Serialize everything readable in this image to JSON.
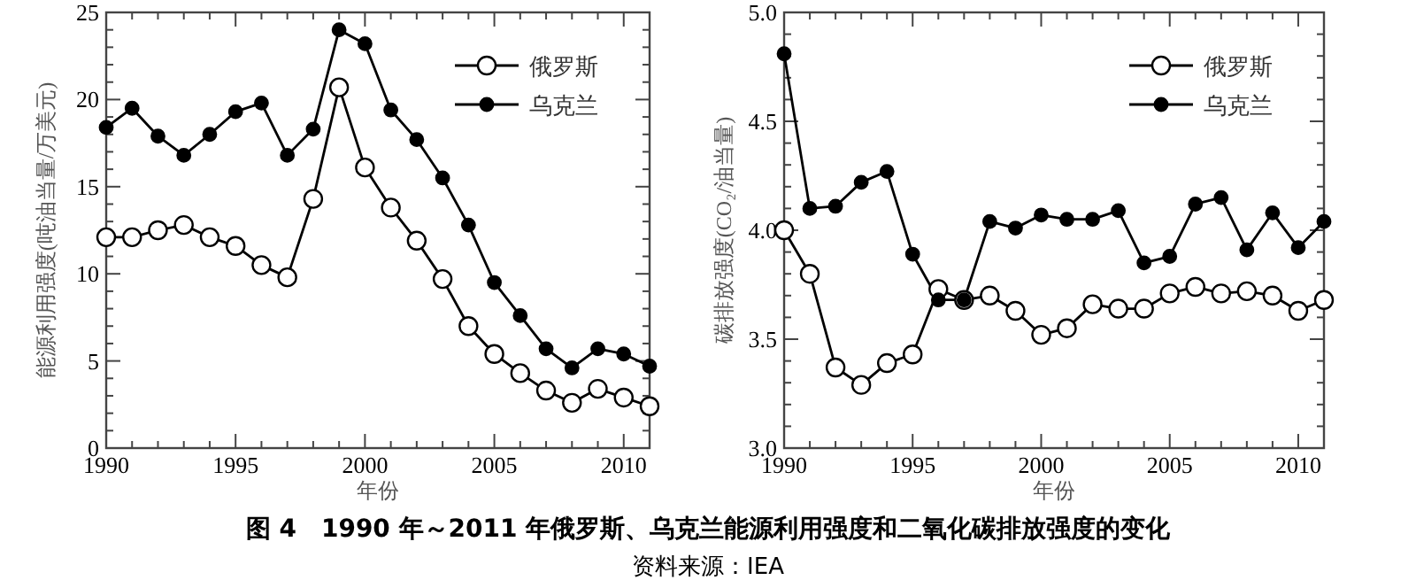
{
  "chart_data": [
    {
      "type": "line",
      "xlabel": "年份",
      "ylabel": "能源利用强度(吨油当量/万美元)",
      "x": [
        1990,
        1991,
        1992,
        1993,
        1994,
        1995,
        1996,
        1997,
        1998,
        1999,
        2000,
        2001,
        2002,
        2003,
        2004,
        2005,
        2006,
        2007,
        2008,
        2009,
        2010,
        2011
      ],
      "series": [
        {
          "name": "俄罗斯",
          "color": "#000000",
          "values": [
            12.1,
            12.1,
            12.5,
            12.8,
            12.1,
            11.6,
            10.5,
            9.8,
            14.3,
            20.7,
            16.1,
            13.8,
            11.9,
            9.7,
            7.0,
            5.4,
            4.3,
            3.3,
            2.6,
            3.4,
            2.9,
            2.4
          ]
        },
        {
          "name": "乌克兰",
          "color": "#000000",
          "values": [
            18.4,
            19.5,
            17.9,
            16.8,
            18.0,
            19.3,
            19.8,
            16.8,
            18.3,
            24.0,
            23.2,
            19.4,
            17.7,
            15.5,
            12.8,
            9.5,
            7.6,
            5.7,
            4.6,
            5.7,
            5.4,
            4.7
          ]
        }
      ],
      "xlim": [
        1990,
        2011
      ],
      "xticks": [
        1990,
        {
          "value": 1991,
          "label": null
        },
        {
          "value": 1992,
          "label": null
        },
        {
          "value": 1993,
          "label": null
        },
        {
          "value": 1994,
          "label": null
        },
        1995,
        {
          "value": 1996,
          "label": null
        },
        {
          "value": 1997,
          "label": null
        },
        {
          "value": 1998,
          "label": null
        },
        {
          "value": 1999,
          "label": null
        },
        2000,
        {
          "value": 2001,
          "label": null
        },
        {
          "value": 2002,
          "label": null
        },
        {
          "value": 2003,
          "label": null
        },
        {
          "value": 2004,
          "label": null
        },
        2005,
        {
          "value": 2006,
          "label": null
        },
        {
          "value": 2007,
          "label": null
        },
        {
          "value": 2008,
          "label": null
        },
        {
          "value": 2009,
          "label": null
        },
        2010,
        {
          "value": 2011,
          "label": null
        }
      ],
      "ylim": [
        0,
        25
      ],
      "yticks": [
        0,
        {
          "value": 1,
          "label": null
        },
        {
          "value": 2,
          "label": null
        },
        {
          "value": 3,
          "label": null
        },
        {
          "value": 4,
          "label": null
        },
        5,
        {
          "value": 6,
          "label": null
        },
        {
          "value": 7,
          "label": null
        },
        {
          "value": 8,
          "label": null
        },
        {
          "value": 9,
          "label": null
        },
        10,
        {
          "value": 11,
          "label": null
        },
        {
          "value": 12,
          "label": null
        },
        {
          "value": 13,
          "label": null
        },
        {
          "value": 14,
          "label": null
        },
        15,
        {
          "value": 16,
          "label": null
        },
        {
          "value": 17,
          "label": null
        },
        {
          "value": 18,
          "label": null
        },
        {
          "value": 19,
          "label": null
        },
        20,
        {
          "value": 21,
          "label": null
        },
        {
          "value": 22,
          "label": null
        },
        {
          "value": 23,
          "label": null
        },
        {
          "value": 24,
          "label": null
        },
        25
      ],
      "legend": "top right",
      "grid": false,
      "marker": "circle",
      "line_style": "solid",
      "annotations": [
        "图 4　1990 年～2011 年俄罗斯、乌克兰能源利用强度和二氧化碳排放强度的变化",
        "资料来源：IEA"
      ]
    },
    {
      "type": "line",
      "xlabel": "年份",
      "ylabel": "碳排放强度(CO₂/油当量)",
      "x": [
        1990,
        1991,
        1992,
        1993,
        1994,
        1995,
        1996,
        1997,
        1998,
        1999,
        2000,
        2001,
        2002,
        2003,
        2004,
        2005,
        2006,
        2007,
        2008,
        2009,
        2010,
        2011
      ],
      "series": [
        {
          "name": "俄罗斯",
          "color": "#000000",
          "values": [
            4.0,
            3.8,
            3.37,
            3.29,
            3.39,
            3.43,
            3.73,
            3.68,
            3.7,
            3.63,
            3.52,
            3.55,
            3.66,
            3.64,
            3.64,
            3.71,
            3.74,
            3.71,
            3.72,
            3.7,
            3.63,
            3.68
          ]
        },
        {
          "name": "乌克兰",
          "color": "#000000",
          "values": [
            4.81,
            4.1,
            4.11,
            4.22,
            4.27,
            3.89,
            3.68,
            3.68,
            4.04,
            4.01,
            4.07,
            4.05,
            4.05,
            4.09,
            3.85,
            3.88,
            4.12,
            4.15,
            3.91,
            4.08,
            3.92,
            4.04
          ]
        }
      ],
      "xlim": [
        1990,
        2011
      ],
      "xticks": [
        1990,
        {
          "value": 1991,
          "label": null
        },
        {
          "value": 1992,
          "label": null
        },
        {
          "value": 1993,
          "label": null
        },
        {
          "value": 1994,
          "label": null
        },
        1995,
        {
          "value": 1996,
          "label": null
        },
        {
          "value": 1997,
          "label": null
        },
        {
          "value": 1998,
          "label": null
        },
        {
          "value": 1999,
          "label": null
        },
        2000,
        {
          "value": 2001,
          "label": null
        },
        {
          "value": 2002,
          "label": null
        },
        {
          "value": 2003,
          "label": null
        },
        {
          "value": 2004,
          "label": null
        },
        2005,
        {
          "value": 2006,
          "label": null
        },
        {
          "value": 2007,
          "label": null
        },
        {
          "value": 2008,
          "label": null
        },
        {
          "value": 2009,
          "label": null
        },
        2010,
        {
          "value": 2011,
          "label": null
        }
      ],
      "ylim": [
        3.0,
        5.0
      ],
      "yticks": [
        {
          "value": 3.0,
          "label": "3.0"
        },
        {
          "value": 3.1,
          "label": null
        },
        {
          "value": 3.2,
          "label": null
        },
        {
          "value": 3.3,
          "label": null
        },
        {
          "value": 3.4,
          "label": null
        },
        3.5,
        {
          "value": 3.6,
          "label": null
        },
        {
          "value": 3.7,
          "label": null
        },
        {
          "value": 3.8,
          "label": null
        },
        {
          "value": 3.9,
          "label": null
        },
        {
          "value": 4.0,
          "label": "4.0"
        },
        {
          "value": 4.1,
          "label": null
        },
        {
          "value": 4.2,
          "label": null
        },
        {
          "value": 4.3,
          "label": null
        },
        {
          "value": 4.4,
          "label": null
        },
        4.5,
        {
          "value": 4.6,
          "label": null
        },
        {
          "value": 4.7,
          "label": null
        },
        {
          "value": 4.8,
          "label": null
        },
        {
          "value": 4.9,
          "label": null
        },
        {
          "value": 5.0,
          "label": "5.0"
        }
      ],
      "legend": "top right",
      "grid": false,
      "marker": "circle",
      "line_style": "solid"
    }
  ]
}
